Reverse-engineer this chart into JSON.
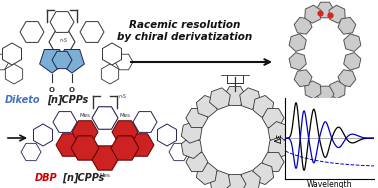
{
  "title_text": "Racemic resolution\nby chiral derivatization",
  "title_fontsize": 7.5,
  "diketo_label_color": "#4472C4",
  "dbp_label_color": "#CC0000",
  "nanohoop_color": "#555555",
  "bg_color": "#FFFFFF",
  "cd_line1_color": "#000000",
  "cd_line2_color": "#0000CC",
  "cd_line3_color": "#0000CC",
  "cd_xlabel": "Wavelength",
  "cd_ylabel": "Δε",
  "blue_fill": "#7BAFD4",
  "red_fill": "#CC2222",
  "white_fill": "#FFFFFF",
  "dark_line": "#333333",
  "dark_blue_line": "#222255"
}
